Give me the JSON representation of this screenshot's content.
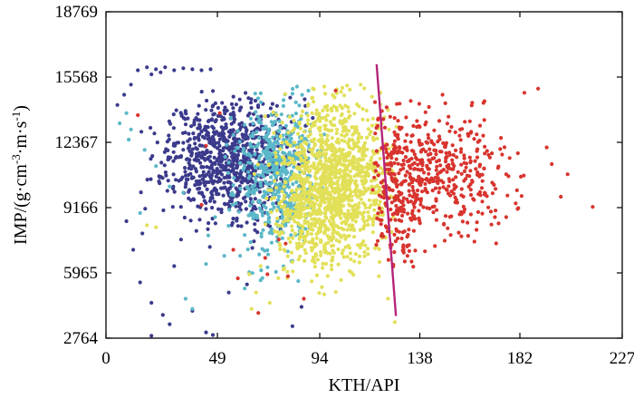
{
  "chart_data": {
    "type": "scatter",
    "title": "",
    "xlabel": "KTH/API",
    "ylabel_main": "IMP/(g·cm",
    "ylabel_exp1": "-3",
    "ylabel_mid": "·m·s",
    "ylabel_exp2": "-1",
    "ylabel_end": ")",
    "xlim": [
      0,
      227
    ],
    "ylim": [
      2764,
      18769
    ],
    "x_ticks": [
      0,
      49,
      94,
      138,
      182,
      227
    ],
    "x_tick_labels": [
      "0",
      "49",
      "94",
      "138",
      "182",
      "227"
    ],
    "y_ticks": [
      2764,
      5965,
      9166,
      12367,
      15568,
      18769
    ],
    "y_tick_labels": [
      "2764",
      "5965",
      "9166",
      "12367",
      "15568",
      "18769"
    ],
    "grid": false,
    "series": [
      {
        "color": "#3b3a8c",
        "clusters": [
          {
            "cx": 55,
            "cy": 11600,
            "sx": 14,
            "sy": 1450,
            "n": 900,
            "xmin": 4,
            "xmax": 92,
            "ymin": 6200,
            "ymax": 15200,
            "seed": 11
          }
        ],
        "points": [
          [
            14,
            15900
          ],
          [
            18,
            16050
          ],
          [
            22,
            15950
          ],
          [
            26,
            16050
          ],
          [
            30,
            15900
          ],
          [
            34,
            16000
          ],
          [
            38,
            15950
          ],
          [
            42,
            15900
          ],
          [
            46,
            15950
          ],
          [
            24,
            15800
          ],
          [
            20,
            15700
          ],
          [
            11,
            15200
          ],
          [
            8,
            14700
          ],
          [
            5,
            14200
          ],
          [
            9,
            8500
          ],
          [
            12,
            7100
          ],
          [
            15,
            5500
          ],
          [
            20,
            4500
          ],
          [
            25,
            3900
          ],
          [
            28,
            3450
          ],
          [
            20,
            2880
          ],
          [
            38,
            4100
          ],
          [
            44,
            3050
          ],
          [
            47,
            2920
          ],
          [
            82,
            3350
          ],
          [
            86,
            4300
          ],
          [
            54,
            5000
          ],
          [
            62,
            5400
          ],
          [
            30,
            6300
          ],
          [
            33,
            7600
          ],
          [
            16,
            7900
          ]
        ]
      },
      {
        "color": "#5bb8c8",
        "clusters": [
          {
            "cx": 74,
            "cy": 10800,
            "sx": 9,
            "sy": 1900,
            "n": 520,
            "xmin": 52,
            "xmax": 96,
            "ymin": 5400,
            "ymax": 15000,
            "seed": 23
          }
        ],
        "points": [
          [
            9,
            13800
          ],
          [
            6,
            13300
          ],
          [
            11,
            13000
          ],
          [
            10,
            12500
          ],
          [
            17,
            12000
          ],
          [
            22,
            11200
          ],
          [
            28,
            10200
          ],
          [
            34,
            9900
          ],
          [
            15,
            8900
          ],
          [
            52,
            6800
          ],
          [
            44,
            6400
          ],
          [
            59,
            6800
          ],
          [
            63,
            6000
          ],
          [
            61,
            5200
          ],
          [
            35,
            4700
          ],
          [
            38,
            4200
          ],
          [
            45,
            7800
          ],
          [
            48,
            8700
          ],
          [
            68,
            5600
          ],
          [
            89,
            14900
          ],
          [
            84,
            15100
          ]
        ]
      },
      {
        "color": "#e2e058",
        "clusters": [
          {
            "cx": 101,
            "cy": 10500,
            "sx": 11,
            "sy": 1950,
            "n": 1150,
            "xmin": 64,
            "xmax": 128,
            "ymin": 4900,
            "ymax": 15100,
            "seed": 37
          },
          {
            "cx": 87,
            "cy": 9000,
            "sx": 7,
            "sy": 1600,
            "n": 200,
            "xmin": 66,
            "xmax": 100,
            "ymin": 4900,
            "ymax": 13000,
            "seed": 41
          }
        ],
        "points": [
          [
            64,
            4200
          ],
          [
            66,
            5000
          ],
          [
            63,
            5900
          ],
          [
            68,
            6300
          ],
          [
            72,
            4500
          ],
          [
            18,
            8300
          ],
          [
            22,
            8200
          ],
          [
            127,
            3550
          ],
          [
            124,
            4700
          ],
          [
            120,
            5800
          ],
          [
            112,
            15200
          ],
          [
            106,
            15150
          ],
          [
            96,
            15100
          ]
        ]
      },
      {
        "color": "#d8342e",
        "clusters": [
          {
            "cx": 150,
            "cy": 10700,
            "sx": 16,
            "sy": 1600,
            "n": 360,
            "xmin": 122,
            "xmax": 196,
            "ymin": 6900,
            "ymax": 14600,
            "seed": 53
          },
          {
            "cx": 128,
            "cy": 9800,
            "sx": 6,
            "sy": 2200,
            "n": 220,
            "xmin": 117,
            "xmax": 142,
            "ymin": 6200,
            "ymax": 14400,
            "seed": 59
          }
        ],
        "points": [
          [
            148,
            14700
          ],
          [
            142,
            14100
          ],
          [
            166,
            14300
          ],
          [
            184,
            14800
          ],
          [
            190,
            15000
          ],
          [
            214,
            9200
          ],
          [
            200,
            9700
          ],
          [
            203,
            10800
          ],
          [
            196,
            11300
          ],
          [
            176,
            8700
          ],
          [
            181,
            9100
          ],
          [
            171,
            8700
          ],
          [
            134,
            14400
          ],
          [
            160,
            13400
          ],
          [
            76,
            7600
          ],
          [
            79,
            7400
          ],
          [
            80,
            5800
          ],
          [
            71,
            5900
          ],
          [
            70,
            6700
          ],
          [
            58,
            5700
          ],
          [
            56,
            7100
          ],
          [
            87,
            4700
          ],
          [
            67,
            4000
          ],
          [
            101,
            14900
          ],
          [
            14,
            13700
          ],
          [
            50,
            13800
          ],
          [
            44,
            12200
          ],
          [
            42,
            9300
          ]
        ]
      }
    ],
    "line": {
      "color": "#b5257a",
      "x": [
        119,
        127.5
      ],
      "y": [
        16200,
        3850
      ]
    }
  }
}
